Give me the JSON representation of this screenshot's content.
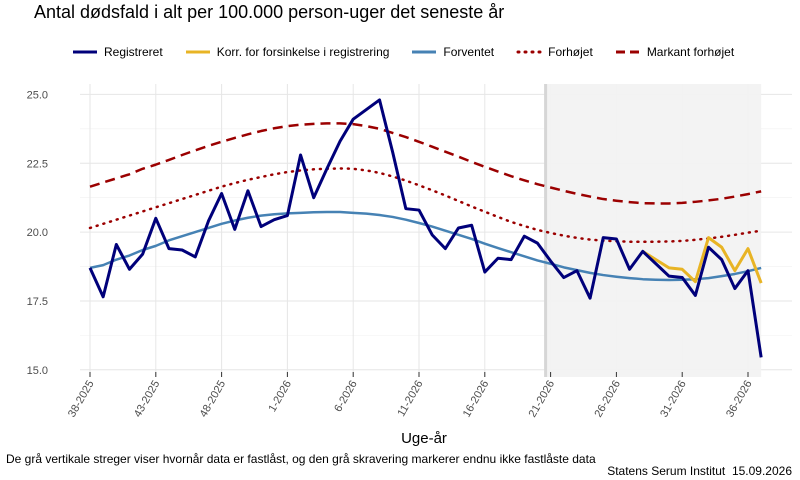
{
  "title": "Antal dødsfald i alt per 100.000 person-uger det seneste år",
  "xlabel": "Uge-år",
  "footnote": "De grå vertikale streger viser hvornår data er fastlåst, og den grå skravering markerer endnu ikke fastlåste data",
  "source": "Statens Serum Institut",
  "date": "15.09.2026",
  "colors": {
    "registreret": "#00007a",
    "korr": "#e8b425",
    "forventet": "#4682b4",
    "forhojet": "#9b0000",
    "markant": "#9b0000",
    "shade": "#f2f2f2",
    "grid": "#e6e6e6"
  },
  "chart_data": {
    "type": "line",
    "title": "Antal dødsfald i alt per 100.000 person-uger det seneste år",
    "xlabel": "Uge-år",
    "ylabel": "",
    "ylim": [
      15.0,
      25.0
    ],
    "yticks": [
      "15.0",
      "17.5",
      "20.0",
      "22.5",
      "25.0"
    ],
    "categories": [
      "38-2025",
      "39-2025",
      "40-2025",
      "41-2025",
      "42-2025",
      "43-2025",
      "44-2025",
      "45-2025",
      "46-2025",
      "47-2025",
      "48-2025",
      "49-2025",
      "50-2025",
      "51-2025",
      "52-2025",
      "1-2026",
      "2-2026",
      "3-2026",
      "4-2026",
      "5-2026",
      "6-2026",
      "7-2026",
      "8-2026",
      "9-2026",
      "10-2026",
      "11-2026",
      "12-2026",
      "13-2026",
      "14-2026",
      "15-2026",
      "16-2026",
      "17-2026",
      "18-2026",
      "19-2026",
      "20-2026",
      "21-2026",
      "22-2026",
      "23-2026",
      "24-2026",
      "25-2026",
      "26-2026",
      "27-2026",
      "28-2026",
      "29-2026",
      "30-2026",
      "31-2026",
      "32-2026",
      "33-2026",
      "34-2026",
      "35-2026",
      "36-2026",
      "37-2026"
    ],
    "xticks": [
      "38-2025",
      "43-2025",
      "48-2025",
      "1-2026",
      "6-2026",
      "11-2026",
      "16-2026",
      "21-2026",
      "26-2026",
      "31-2026",
      "36-2026"
    ],
    "shaded_from": "21-2026",
    "legend_position": "top",
    "grid": true,
    "series": [
      {
        "name": "Registreret",
        "style": "solid",
        "values": [
          18.7,
          17.65,
          19.55,
          18.65,
          19.2,
          20.5,
          19.4,
          19.35,
          19.1,
          20.4,
          21.4,
          20.1,
          21.5,
          20.2,
          20.45,
          20.6,
          22.8,
          21.25,
          22.3,
          23.3,
          24.1,
          24.45,
          24.8,
          22.9,
          20.85,
          20.8,
          19.9,
          19.4,
          20.15,
          20.25,
          18.55,
          19.05,
          19.0,
          19.85,
          19.6,
          18.95,
          18.35,
          18.6,
          17.6,
          19.8,
          19.75,
          18.65,
          19.3,
          18.85,
          18.4,
          18.35,
          17.7,
          19.45,
          19.0,
          17.95,
          18.6,
          15.45
        ]
      },
      {
        "name": "Korr. for forsinkelse i registrering",
        "style": "solid",
        "values": [
          null,
          null,
          null,
          null,
          null,
          null,
          null,
          null,
          null,
          null,
          null,
          null,
          null,
          null,
          null,
          null,
          null,
          null,
          null,
          null,
          null,
          null,
          null,
          null,
          null,
          null,
          null,
          null,
          null,
          null,
          null,
          null,
          null,
          null,
          null,
          null,
          null,
          null,
          null,
          null,
          null,
          null,
          19.3,
          19.0,
          18.7,
          18.65,
          18.2,
          19.8,
          19.45,
          18.6,
          19.4,
          18.15
        ]
      },
      {
        "name": "Forventet",
        "style": "solid",
        "values": [
          18.7,
          18.8,
          19.0,
          19.15,
          19.35,
          19.5,
          19.7,
          19.85,
          20.0,
          20.15,
          20.3,
          20.42,
          20.52,
          20.6,
          20.65,
          20.68,
          20.7,
          20.72,
          20.73,
          20.73,
          20.7,
          20.67,
          20.62,
          20.55,
          20.45,
          20.33,
          20.2,
          20.05,
          19.9,
          19.75,
          19.58,
          19.42,
          19.27,
          19.12,
          18.97,
          18.85,
          18.72,
          18.62,
          18.52,
          18.44,
          18.38,
          18.33,
          18.29,
          18.27,
          18.26,
          18.27,
          18.29,
          18.33,
          18.4,
          18.48,
          18.58,
          18.7
        ]
      },
      {
        "name": "Forhøjet",
        "style": "dotted",
        "values": [
          20.15,
          20.3,
          20.45,
          20.6,
          20.75,
          20.9,
          21.05,
          21.2,
          21.35,
          21.5,
          21.65,
          21.78,
          21.9,
          22.0,
          22.1,
          22.18,
          22.24,
          22.28,
          22.3,
          22.31,
          22.3,
          22.24,
          22.15,
          22.02,
          21.87,
          21.7,
          21.52,
          21.33,
          21.13,
          20.93,
          20.74,
          20.55,
          20.37,
          20.22,
          20.08,
          19.97,
          19.87,
          19.79,
          19.73,
          19.69,
          19.67,
          19.65,
          19.65,
          19.65,
          19.66,
          19.68,
          19.72,
          19.77,
          19.83,
          19.9,
          19.98,
          20.05
        ]
      },
      {
        "name": "Markant forhøjet",
        "style": "dashed",
        "values": [
          21.65,
          21.8,
          21.95,
          22.1,
          22.3,
          22.45,
          22.62,
          22.8,
          22.97,
          23.13,
          23.28,
          23.42,
          23.55,
          23.67,
          23.77,
          23.85,
          23.9,
          23.93,
          23.95,
          23.95,
          23.92,
          23.85,
          23.75,
          23.6,
          23.45,
          23.28,
          23.1,
          22.92,
          22.74,
          22.55,
          22.37,
          22.2,
          22.03,
          21.88,
          21.74,
          21.62,
          21.5,
          21.39,
          21.29,
          21.2,
          21.14,
          21.09,
          21.05,
          21.04,
          21.04,
          21.06,
          21.1,
          21.15,
          21.21,
          21.29,
          21.38,
          21.48
        ]
      }
    ]
  }
}
